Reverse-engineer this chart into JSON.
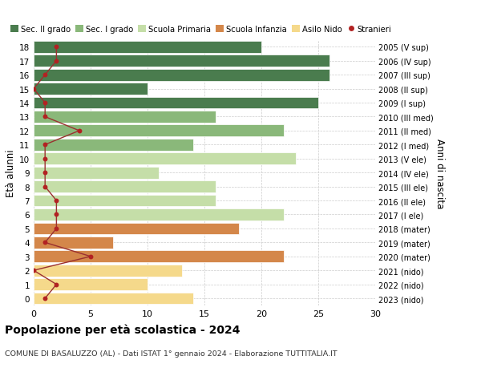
{
  "ages": [
    18,
    17,
    16,
    15,
    14,
    13,
    12,
    11,
    10,
    9,
    8,
    7,
    6,
    5,
    4,
    3,
    2,
    1,
    0
  ],
  "bar_values": [
    20,
    26,
    26,
    10,
    25,
    16,
    22,
    14,
    23,
    11,
    16,
    16,
    22,
    18,
    7,
    22,
    13,
    10,
    14
  ],
  "bar_colors": [
    "#4a7c4e",
    "#4a7c4e",
    "#4a7c4e",
    "#4a7c4e",
    "#4a7c4e",
    "#8ab87a",
    "#8ab87a",
    "#8ab87a",
    "#c5dea8",
    "#c5dea8",
    "#c5dea8",
    "#c5dea8",
    "#c5dea8",
    "#d4874a",
    "#d4874a",
    "#d4874a",
    "#f5d98b",
    "#f5d98b",
    "#f5d98b"
  ],
  "right_labels": [
    "2005 (V sup)",
    "2006 (IV sup)",
    "2007 (III sup)",
    "2008 (II sup)",
    "2009 (I sup)",
    "2010 (III med)",
    "2011 (II med)",
    "2012 (I med)",
    "2013 (V ele)",
    "2014 (IV ele)",
    "2015 (III ele)",
    "2016 (II ele)",
    "2017 (I ele)",
    "2018 (mater)",
    "2019 (mater)",
    "2020 (mater)",
    "2021 (nido)",
    "2022 (nido)",
    "2023 (nido)"
  ],
  "stranieri_values": [
    2,
    2,
    1,
    0,
    1,
    1,
    4,
    1,
    1,
    1,
    1,
    2,
    2,
    2,
    1,
    5,
    0,
    2,
    1
  ],
  "legend_labels": [
    "Sec. II grado",
    "Sec. I grado",
    "Scuola Primaria",
    "Scuola Infanzia",
    "Asilo Nido",
    "Stranieri"
  ],
  "legend_colors": [
    "#4a7c4e",
    "#8ab87a",
    "#c5dea8",
    "#d4874a",
    "#f5d98b",
    "#b22222"
  ],
  "title": "Popolazione per età scolastica - 2024",
  "subtitle": "COMUNE DI BASALUZZO (AL) - Dati ISTAT 1° gennaio 2024 - Elaborazione TUTTITALIA.IT",
  "ylabel_left": "Età alunni",
  "ylabel_right": "Anni di nascita",
  "xlim": [
    0,
    30
  ],
  "bg_color": "#ffffff",
  "bar_edge_color": "#ffffff",
  "grid_color": "#cccccc"
}
